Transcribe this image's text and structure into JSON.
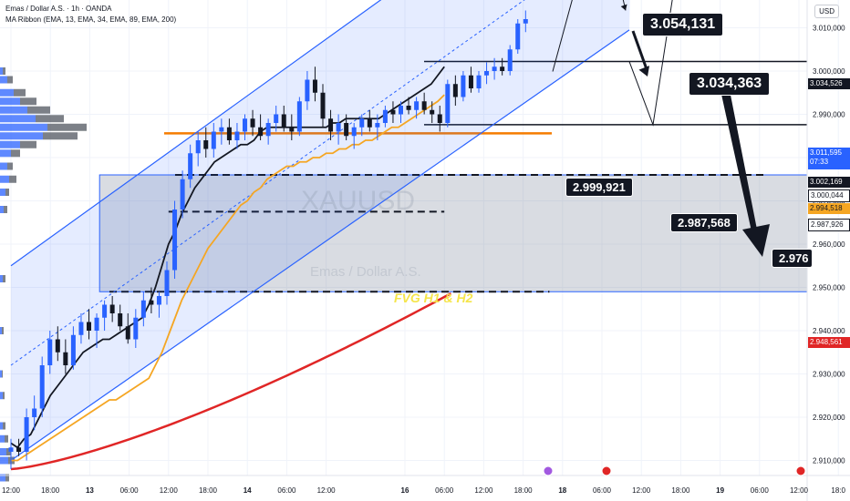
{
  "header": {
    "symbol_line": "Emas / Dollar A.S. · 1h · OANDA",
    "indicator_line": "MA Ribbon (EMA, 13, EMA, 34, EMA, 89, EMA, 200)",
    "currency": "USD"
  },
  "watermark": {
    "ticker": "XAUUSD",
    "name": "Emas / Dollar A.S."
  },
  "annotations": {
    "fvg_label": "FVG H1 & H2",
    "target_top": "3.054,131",
    "target_resistance": "3.034,363",
    "level_pullback": "2.999,921",
    "level_support": "2.987,568",
    "level_final": "2.976"
  },
  "price_tags": {
    "resistance": "3.034,526",
    "last_price": "3.011,595",
    "countdown": "07:33",
    "p1": "3.002,169",
    "p2": "3.000,044",
    "ema_orange": "2.994,518",
    "p3": "2.987,926",
    "ema_red": "2.948,561"
  },
  "colors": {
    "bull": "#2962ff",
    "bear": "#131722",
    "ema13": "#131722",
    "ema34": "#f5a623",
    "ema200": "#e02626",
    "channel": "#2962ff",
    "level_orange": "#f57c00"
  },
  "chart_data": {
    "type": "candlestick",
    "instrument": "Emas / Dollar A.S.",
    "timeframe": "1h",
    "source": "OANDA",
    "y_range": [
      2905,
      3057
    ],
    "y_ticks": [
      "3.050,000",
      "3.040,000",
      "3.030,000",
      "3.020,000",
      "3.010,000",
      "3.000,000",
      "2.990,000",
      "2.980,000",
      "2.970,000",
      "2.960,000",
      "2.950,000",
      "2.940,000",
      "2.930,000",
      "2.920,000",
      "2.910,000"
    ],
    "y_tick_values": [
      3050,
      3040,
      3030,
      3020,
      3010,
      3000,
      2990,
      2980,
      2970,
      2960,
      2950,
      2940,
      2930,
      2920,
      2910
    ],
    "x_labels": [
      "12:00",
      "18:00",
      "13",
      "06:00",
      "12:00",
      "18:00",
      "14",
      "06:00",
      "12:00",
      "16",
      "06:00",
      "12:00",
      "18:00",
      "18",
      "06:00",
      "12:00",
      "18:00",
      "19",
      "06:00",
      "12:00",
      "18:0"
    ],
    "x_label_hours": [
      0,
      6,
      12,
      18,
      24,
      30,
      36,
      42,
      48,
      60,
      66,
      72,
      78,
      84,
      90,
      96,
      102,
      108,
      114,
      120,
      126
    ],
    "candles": [
      [
        2912,
        2915,
        2908,
        2913
      ],
      [
        2913,
        2915,
        2911,
        2912
      ],
      [
        2912,
        2922,
        2910,
        2920
      ],
      [
        2920,
        2925,
        2917,
        2922
      ],
      [
        2922,
        2934,
        2920,
        2932
      ],
      [
        2932,
        2940,
        2930,
        2938
      ],
      [
        2938,
        2941,
        2933,
        2935
      ],
      [
        2935,
        2938,
        2930,
        2932
      ],
      [
        2932,
        2941,
        2931,
        2939
      ],
      [
        2939,
        2944,
        2937,
        2942
      ],
      [
        2942,
        2945,
        2938,
        2940
      ],
      [
        2940,
        2944,
        2936,
        2943
      ],
      [
        2943,
        2947,
        2940,
        2946
      ],
      [
        2946,
        2948,
        2942,
        2944
      ],
      [
        2944,
        2946,
        2940,
        2941
      ],
      [
        2941,
        2944,
        2937,
        2938
      ],
      [
        2938,
        2945,
        2936,
        2943
      ],
      [
        2943,
        2949,
        2941,
        2947
      ],
      [
        2947,
        2950,
        2944,
        2946
      ],
      [
        2946,
        2949,
        2943,
        2948
      ],
      [
        2948,
        2956,
        2946,
        2954
      ],
      [
        2954,
        2970,
        2952,
        2968
      ],
      [
        2968,
        2977,
        2966,
        2975
      ],
      [
        2975,
        2983,
        2973,
        2981
      ],
      [
        2981,
        2986,
        2978,
        2984
      ],
      [
        2984,
        2987,
        2980,
        2982
      ],
      [
        2982,
        2988,
        2980,
        2986
      ],
      [
        2986,
        2989,
        2983,
        2987
      ],
      [
        2987,
        2989,
        2983,
        2984
      ],
      [
        2984,
        2988,
        2982,
        2986
      ],
      [
        2986,
        2990,
        2984,
        2989
      ],
      [
        2989,
        2991,
        2985,
        2987
      ],
      [
        2987,
        2990,
        2984,
        2985
      ],
      [
        2985,
        2989,
        2983,
        2988
      ],
      [
        2988,
        2992,
        2986,
        2990
      ],
      [
        2990,
        2992,
        2986,
        2987
      ],
      [
        2987,
        2990,
        2984,
        2986
      ],
      [
        2986,
        2994,
        2985,
        2993
      ],
      [
        2993,
        3000,
        2991,
        2998
      ],
      [
        2998,
        3001,
        2993,
        2995
      ],
      [
        2995,
        2997,
        2987,
        2989
      ],
      [
        2989,
        2991,
        2984,
        2986
      ],
      [
        2986,
        2990,
        2983,
        2988
      ],
      [
        2988,
        2990,
        2984,
        2985
      ],
      [
        2985,
        2988,
        2982,
        2987
      ],
      [
        2987,
        2990,
        2985,
        2989
      ],
      [
        2989,
        2991,
        2986,
        2987
      ],
      [
        2987,
        2990,
        2984,
        2988
      ],
      [
        2988,
        2992,
        2987,
        2991
      ],
      [
        2991,
        2993,
        2988,
        2990
      ],
      [
        2990,
        2993,
        2988,
        2992
      ],
      [
        2992,
        2994,
        2990,
        2991
      ],
      [
        2991,
        2994,
        2989,
        2993
      ],
      [
        2993,
        2995,
        2990,
        2991
      ],
      [
        2991,
        2993,
        2988,
        2990
      ],
      [
        2990,
        2992,
        2986,
        2988
      ],
      [
        2988,
        2998,
        2987,
        2997
      ],
      [
        2997,
        2999,
        2992,
        2994
      ],
      [
        2994,
        3000,
        2993,
        2999
      ],
      [
        2999,
        3001,
        2995,
        2996
      ],
      [
        2996,
        3000,
        2995,
        2999
      ],
      [
        2999,
        3002,
        2997,
        3000
      ],
      [
        3000,
        3003,
        2998,
        3001
      ],
      [
        3001,
        3003,
        2999,
        3000
      ],
      [
        3000,
        3006,
        2999,
        3005
      ],
      [
        3005,
        3012,
        3004,
        3011
      ],
      [
        3011,
        3014,
        3009,
        3012
      ]
    ],
    "ema13": [
      2914,
      2913,
      2915,
      2916,
      2919,
      2922,
      2925,
      2927,
      2929,
      2931,
      2933,
      2935,
      2936,
      2937,
      2938,
      2938,
      2939,
      2940,
      2941,
      2942,
      2943,
      2946,
      2950,
      2955,
      2960,
      2963,
      2967,
      2970,
      2973,
      2975,
      2977,
      2979,
      2980,
      2981,
      2982,
      2983,
      2983,
      2984,
      2986,
      2987,
      2987,
      2987,
      2987,
      2987,
      2987,
      2987,
      2987,
      2987,
      2987,
      2988,
      2988,
      2989,
      2989,
      2989,
      2989,
      2989,
      2989,
      2990,
      2991,
      2992,
      2993,
      2994,
      2995,
      2996,
      2997,
      2999,
      3001
    ],
    "ema34": [
      2910,
      2910,
      2911,
      2912,
      2913,
      2914,
      2915,
      2916,
      2917,
      2918,
      2919,
      2920,
      2921,
      2922,
      2923,
      2924,
      2924,
      2925,
      2926,
      2927,
      2928,
      2929,
      2932,
      2935,
      2939,
      2943,
      2947,
      2950,
      2953,
      2956,
      2959,
      2961,
      2963,
      2965,
      2967,
      2969,
      2970,
      2972,
      2973,
      2975,
      2976,
      2977,
      2978,
      2978,
      2979,
      2979,
      2980,
      2980,
      2981,
      2981,
      2982,
      2982,
      2983,
      2983,
      2984,
      2984,
      2985,
      2986,
      2987,
      2987,
      2988,
      2989,
      2990,
      2991,
      2992,
      2993,
      2994.5
    ],
    "ema200_endpoints": [
      [
        0,
        2908
      ],
      [
        67,
        2948.6
      ]
    ],
    "levels": [
      {
        "label": "3.054,131",
        "value": 3054.1
      },
      {
        "label": "3.034,363",
        "value": 3034.4
      },
      {
        "label": "2.999,921",
        "value": 2999.9
      },
      {
        "label": "2.987,568",
        "value": 2987.6
      },
      {
        "label": "2.976",
        "value": 2976.0
      }
    ],
    "fvg_zone": {
      "label": "FVG H1 & H2",
      "top": 2976,
      "bottom": 2949
    },
    "projection": [
      [
        67,
        3000
      ],
      [
        72,
        3034.4
      ],
      [
        76,
        3015
      ],
      [
        76,
        3015
      ],
      [
        80,
        2999.9
      ],
      [
        86,
        2987.6
      ],
      [
        92,
        3034.4
      ],
      [
        102,
        2976
      ]
    ]
  }
}
